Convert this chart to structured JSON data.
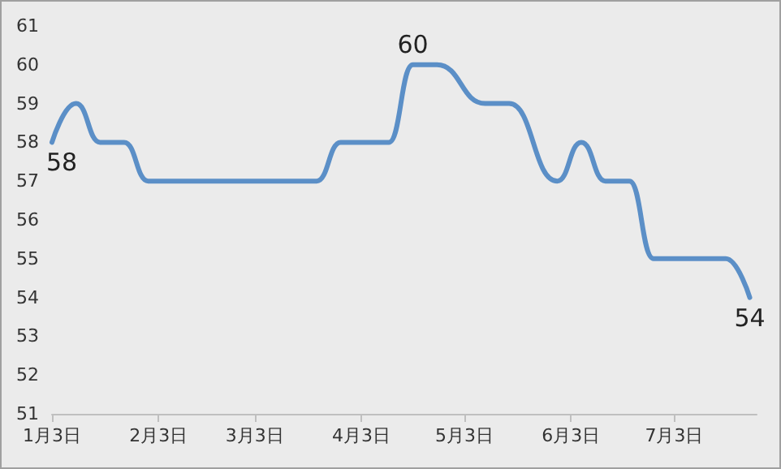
{
  "chart_data": {
    "type": "line",
    "x": [
      "--01-03",
      "--01-10",
      "--01-17",
      "--01-24",
      "--01-31",
      "--02-07",
      "--02-14",
      "--02-21",
      "--02-28",
      "--03-07",
      "--03-14",
      "--03-21",
      "--03-28",
      "--04-04",
      "--04-11",
      "--04-18",
      "--04-25",
      "--05-09",
      "--05-16",
      "--05-30",
      "--06-06",
      "--06-13",
      "--06-20",
      "--06-27",
      "--07-04",
      "--07-11",
      "--07-18",
      "--07-25"
    ],
    "series": [
      {
        "color": "#5b8fc7",
        "values": [
          58,
          59,
          58,
          58,
          57,
          57,
          57,
          57,
          57,
          57,
          57,
          57,
          58,
          58,
          58,
          60,
          60,
          59,
          59,
          57,
          58,
          57,
          57,
          55,
          55,
          55,
          55,
          54
        ],
        "value_labels": [
          "58",
          null,
          null,
          null,
          null,
          null,
          null,
          null,
          null,
          null,
          null,
          null,
          null,
          null,
          null,
          "60",
          null,
          null,
          null,
          null,
          null,
          null,
          null,
          null,
          null,
          null,
          null,
          "54"
        ]
      }
    ],
    "xlim": [
      "--01-03",
      "--07-27"
    ],
    "xticks": [
      {
        "value": "--01-03",
        "label": "1月3日"
      },
      {
        "value": "--02-03",
        "label": "2月3日"
      },
      {
        "value": "--03-03",
        "label": "3月3日"
      },
      {
        "value": "--04-03",
        "label": "4月3日"
      },
      {
        "value": "--05-03",
        "label": "5月3日"
      },
      {
        "value": "--06-03",
        "label": "6月3日"
      },
      {
        "value": "--07-03",
        "label": "7月3日"
      }
    ],
    "ylim": [
      51,
      61
    ],
    "yticks": [
      51,
      52,
      53,
      54,
      55,
      56,
      57,
      58,
      59,
      60,
      61
    ],
    "marker": "none",
    "line_style": "solid",
    "grid": false
  }
}
